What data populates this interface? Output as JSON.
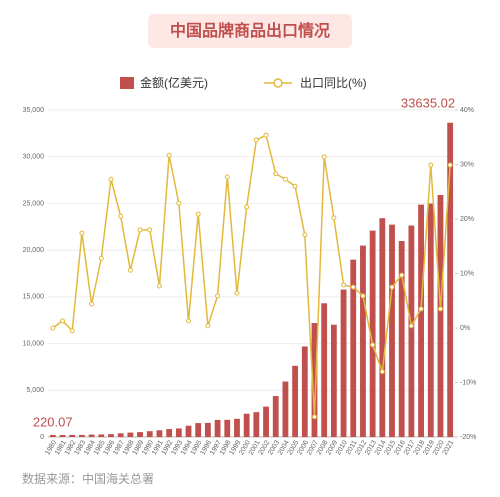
{
  "chart_data": {
    "type": "bar_line",
    "title": "中国品牌商品出口情况",
    "source": "数据来源：中国海关总署",
    "categories": [
      "1980",
      "1981",
      "1982",
      "1983",
      "1984",
      "1985",
      "1986",
      "1987",
      "1988",
      "1989",
      "1990",
      "1991",
      "1992",
      "1993",
      "1994",
      "1995",
      "1996",
      "1997",
      "1998",
      "1999",
      "2000",
      "2001",
      "2002",
      "2003",
      "2004",
      "2005",
      "2006",
      "2007",
      "2008",
      "2009",
      "2010",
      "2011",
      "2012",
      "2013",
      "2014",
      "2015",
      "2016",
      "2017",
      "2018",
      "2019",
      "2020",
      "2021"
    ],
    "series": [
      {
        "name": "金额(亿美元)",
        "type": "bar",
        "color": "#c0504d",
        "values": [
          220.07,
          220,
          223,
          222,
          261,
          274,
          309,
          394,
          475,
          525,
          621,
          719,
          849,
          917,
          1210,
          1488,
          1511,
          1828,
          1837,
          1949,
          2492,
          2661,
          3256,
          4383,
          5934,
          7620,
          9690,
          12200,
          14310,
          12020,
          15780,
          18980,
          20490,
          22090,
          23420,
          22730,
          20980,
          22630,
          24870,
          24990,
          25900,
          33635.02
        ]
      },
      {
        "name": "出口同比(%)",
        "type": "line",
        "axis": "y2",
        "color": "#e2b93b",
        "values": [
          0,
          1.3,
          -0.5,
          17.4,
          4.4,
          12.8,
          27.3,
          20.5,
          10.6,
          18,
          18,
          7.7,
          31.7,
          22.9,
          1.3,
          20.9,
          0.4,
          5.9,
          27.7,
          6.4,
          22.2,
          34.5,
          35.4,
          28.3,
          27.3,
          26,
          17.1,
          -16.3,
          31.4,
          20.2,
          7.9,
          7.5,
          5.9,
          -3.1,
          -8,
          7.5,
          9.7,
          0.4,
          3.5,
          29.9,
          3.5,
          29.9
        ]
      }
    ],
    "ylim": [
      0,
      35000
    ],
    "yticks": [
      0,
      {
        "value": 5000,
        "label": "5,000"
      },
      {
        "value": 10000,
        "label": "10,000"
      },
      {
        "value": 15000,
        "label": "15,000"
      },
      {
        "value": 20000,
        "label": "20,000"
      },
      {
        "value": 25000,
        "label": "25,000"
      },
      {
        "value": 30000,
        "label": "30,000"
      },
      {
        "value": 35000,
        "label": "35,000"
      }
    ],
    "y2lim": [
      -20,
      40
    ],
    "y2ticks": [
      {
        "value": -20,
        "label": "-20%"
      },
      {
        "value": -10,
        "label": "-10%"
      },
      {
        "value": 0,
        "label": "0%"
      },
      {
        "value": 10,
        "label": "10%"
      },
      {
        "value": 20,
        "label": "20%"
      },
      {
        "value": 30,
        "label": "30%"
      },
      {
        "value": 40,
        "label": "40%"
      }
    ],
    "grid": true,
    "legend": "top"
  }
}
